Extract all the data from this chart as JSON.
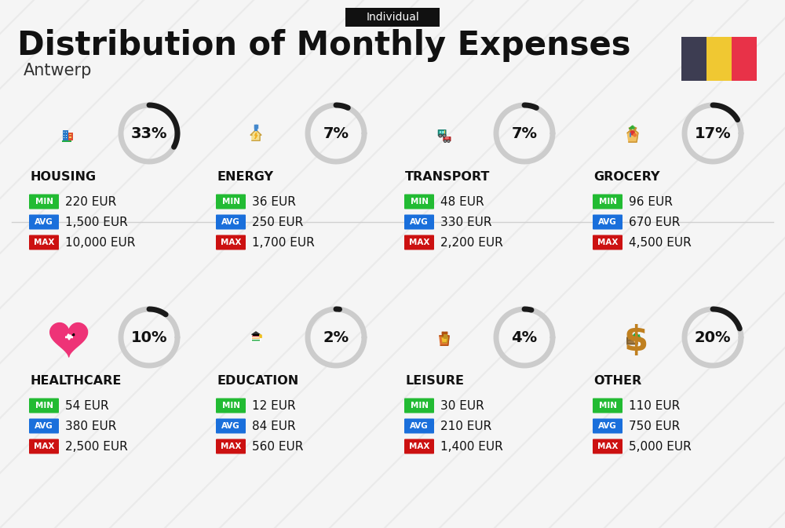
{
  "title": "Distribution of Monthly Expenses",
  "subtitle": "Antwerp",
  "tag": "Individual",
  "bg_color": "#f5f5f5",
  "categories": [
    {
      "name": "HOUSING",
      "pct": 33,
      "min_val": "220 EUR",
      "avg_val": "1,500 EUR",
      "max_val": "10,000 EUR",
      "row": 0,
      "col": 0
    },
    {
      "name": "ENERGY",
      "pct": 7,
      "min_val": "36 EUR",
      "avg_val": "250 EUR",
      "max_val": "1,700 EUR",
      "row": 0,
      "col": 1
    },
    {
      "name": "TRANSPORT",
      "pct": 7,
      "min_val": "48 EUR",
      "avg_val": "330 EUR",
      "max_val": "2,200 EUR",
      "row": 0,
      "col": 2
    },
    {
      "name": "GROCERY",
      "pct": 17,
      "min_val": "96 EUR",
      "avg_val": "670 EUR",
      "max_val": "4,500 EUR",
      "row": 0,
      "col": 3
    },
    {
      "name": "HEALTHCARE",
      "pct": 10,
      "min_val": "54 EUR",
      "avg_val": "380 EUR",
      "max_val": "2,500 EUR",
      "row": 1,
      "col": 0
    },
    {
      "name": "EDUCATION",
      "pct": 2,
      "min_val": "12 EUR",
      "avg_val": "84 EUR",
      "max_val": "560 EUR",
      "row": 1,
      "col": 1
    },
    {
      "name": "LEISURE",
      "pct": 4,
      "min_val": "30 EUR",
      "avg_val": "210 EUR",
      "max_val": "1,400 EUR",
      "row": 1,
      "col": 2
    },
    {
      "name": "OTHER",
      "pct": 20,
      "min_val": "110 EUR",
      "avg_val": "750 EUR",
      "max_val": "5,000 EUR",
      "row": 1,
      "col": 3
    }
  ],
  "color_min": "#22bb33",
  "color_avg": "#1a6fdb",
  "color_max": "#cc1111",
  "ring_filled_color": "#1a1a1a",
  "ring_empty_color": "#cccccc",
  "ring_lw": 5,
  "flag_colors": [
    "#3d3d52",
    "#f0c832",
    "#e83248"
  ],
  "stripe_color": "#e0e0e0",
  "divider_color": "#d0d0d0"
}
